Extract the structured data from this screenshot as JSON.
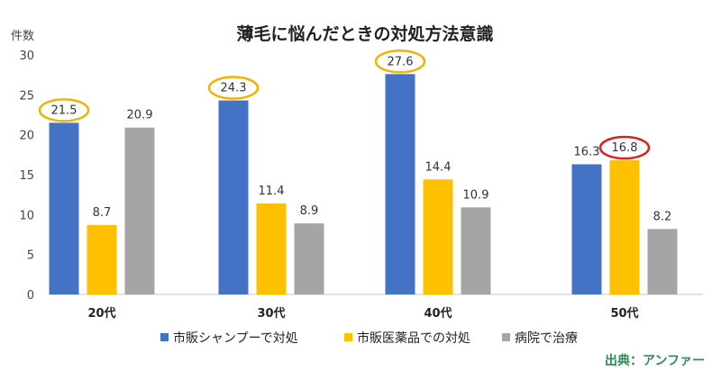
{
  "chart_data": {
    "type": "bar",
    "title": "薄毛に悩んだときの対処方法意識",
    "ylabel": "件数",
    "ylim": [
      0,
      30
    ],
    "yticks": [
      0,
      5,
      10,
      15,
      20,
      25,
      30
    ],
    "grid": false,
    "legend_position": "bottom",
    "categories": [
      "20代",
      "30代",
      "40代",
      "50代"
    ],
    "series": [
      {
        "name": "市販シャンプーで対処",
        "values": [
          21.5,
          24.3,
          27.6,
          16.3
        ],
        "color": "#4472c4"
      },
      {
        "name": "市販医薬品での対処",
        "values": [
          8.7,
          11.4,
          14.4,
          16.8
        ],
        "color": "#ffc000"
      },
      {
        "name": "病院で治療",
        "values": [
          20.9,
          8.9,
          10.9,
          8.2
        ],
        "color": "#a5a5a5"
      }
    ],
    "highlights": [
      {
        "series": 0,
        "category": 0,
        "color": "#f0b400"
      },
      {
        "series": 0,
        "category": 1,
        "color": "#f0b400"
      },
      {
        "series": 0,
        "category": 2,
        "color": "#f0b400"
      },
      {
        "series": 1,
        "category": 3,
        "color": "#e02020"
      }
    ]
  },
  "source": "出典：アンファー"
}
